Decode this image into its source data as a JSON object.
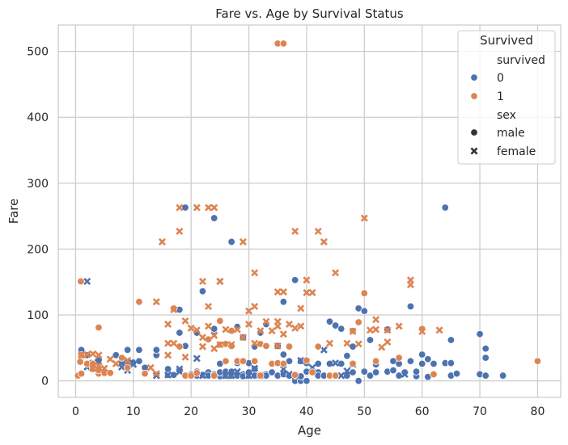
{
  "chart_data": {
    "type": "scatter",
    "title": "Fare vs. Age by Survival Status",
    "xlabel": "Age",
    "ylabel": "Fare",
    "xlim": [
      -3,
      84
    ],
    "ylim": [
      -25,
      540
    ],
    "xticks": [
      "0",
      "10",
      "20",
      "30",
      "40",
      "50",
      "60",
      "70",
      "80"
    ],
    "yticks": [
      "0",
      "100",
      "200",
      "300",
      "400",
      "500"
    ],
    "grid": true,
    "legend": {
      "title": "Survived",
      "placement": "top-right",
      "hue_label": "survived",
      "hue_entries": [
        "0",
        "1"
      ],
      "style_label": "sex",
      "style_entries": [
        "male",
        "female"
      ]
    },
    "colors": {
      "0": "#4c72b0",
      "1": "#dd8452"
    },
    "markers": {
      "male": "circle",
      "female": "x"
    },
    "series": [
      {
        "survived": "0",
        "sex": "male",
        "points": [
          [
            1,
            47
          ],
          [
            2,
            39
          ],
          [
            4,
            29
          ],
          [
            4,
            31
          ],
          [
            7,
            39
          ],
          [
            8,
            29
          ],
          [
            9,
            47
          ],
          [
            10,
            28
          ],
          [
            11,
            47
          ],
          [
            11,
            30
          ],
          [
            12,
            20
          ],
          [
            14,
            39
          ],
          [
            14,
            47
          ],
          [
            16,
            9
          ],
          [
            16,
            18
          ],
          [
            17,
            9
          ],
          [
            17,
            109
          ],
          [
            18,
            73
          ],
          [
            18,
            108
          ],
          [
            19,
            263
          ],
          [
            19,
            53
          ],
          [
            19,
            7
          ],
          [
            20,
            7
          ],
          [
            20,
            10
          ],
          [
            20,
            10
          ],
          [
            21,
            73
          ],
          [
            21,
            14
          ],
          [
            21,
            8
          ],
          [
            22,
            136
          ],
          [
            22,
            8
          ],
          [
            22,
            10
          ],
          [
            22,
            9
          ],
          [
            23,
            13
          ],
          [
            23,
            8
          ],
          [
            24,
            247
          ],
          [
            24,
            73
          ],
          [
            24,
            8
          ],
          [
            24,
            10
          ],
          [
            24,
            79
          ],
          [
            25,
            8
          ],
          [
            25,
            7
          ],
          [
            25,
            26
          ],
          [
            25,
            13
          ],
          [
            26,
            8
          ],
          [
            26,
            14
          ],
          [
            26,
            30
          ],
          [
            27,
            211
          ],
          [
            27,
            52
          ],
          [
            27,
            8
          ],
          [
            27,
            14
          ],
          [
            28,
            82
          ],
          [
            28,
            10
          ],
          [
            28,
            27
          ],
          [
            28,
            8
          ],
          [
            29,
            66
          ],
          [
            29,
            10
          ],
          [
            29,
            7
          ],
          [
            29,
            30
          ],
          [
            30,
            8
          ],
          [
            30,
            13
          ],
          [
            30,
            27
          ],
          [
            31,
            52
          ],
          [
            31,
            18
          ],
          [
            31,
            8
          ],
          [
            32,
            73
          ],
          [
            32,
            56
          ],
          [
            32,
            8
          ],
          [
            33,
            86
          ],
          [
            33,
            10
          ],
          [
            33,
            8
          ],
          [
            34,
            26
          ],
          [
            34,
            13
          ],
          [
            35,
            8
          ],
          [
            35,
            26
          ],
          [
            35,
            53
          ],
          [
            36,
            120
          ],
          [
            36,
            10
          ],
          [
            36,
            40
          ],
          [
            37,
            30
          ],
          [
            37,
            8
          ],
          [
            37,
            53
          ],
          [
            38,
            153
          ],
          [
            38,
            0
          ],
          [
            38,
            8
          ],
          [
            39,
            0
          ],
          [
            39,
            30
          ],
          [
            39,
            7
          ],
          [
            40,
            27
          ],
          [
            40,
            14
          ],
          [
            40,
            0
          ],
          [
            41,
            13
          ],
          [
            42,
            26
          ],
          [
            42,
            13
          ],
          [
            42,
            8
          ],
          [
            43,
            8
          ],
          [
            44,
            26
          ],
          [
            44,
            90
          ],
          [
            45,
            84
          ],
          [
            45,
            7
          ],
          [
            46,
            79
          ],
          [
            46,
            26
          ],
          [
            47,
            38
          ],
          [
            47,
            8
          ],
          [
            48,
            52
          ],
          [
            48,
            13
          ],
          [
            49,
            110
          ],
          [
            49,
            0
          ],
          [
            50,
            106
          ],
          [
            50,
            14
          ],
          [
            51,
            62
          ],
          [
            51,
            8
          ],
          [
            52,
            13
          ],
          [
            52,
            25
          ],
          [
            54,
            78
          ],
          [
            54,
            14
          ],
          [
            55,
            30
          ],
          [
            55,
            16
          ],
          [
            56,
            26
          ],
          [
            56,
            8
          ],
          [
            57,
            13
          ],
          [
            58,
            113
          ],
          [
            58,
            30
          ],
          [
            59,
            7
          ],
          [
            59,
            14
          ],
          [
            60,
            40
          ],
          [
            60,
            26
          ],
          [
            61,
            33
          ],
          [
            61,
            6
          ],
          [
            62,
            26
          ],
          [
            62,
            10
          ],
          [
            64,
            263
          ],
          [
            64,
            27
          ],
          [
            65,
            62
          ],
          [
            65,
            8
          ],
          [
            65,
            27
          ],
          [
            66,
            11
          ],
          [
            70,
            71
          ],
          [
            70,
            10
          ],
          [
            71,
            49
          ],
          [
            71,
            35
          ],
          [
            71,
            8
          ],
          [
            74,
            8
          ]
        ]
      },
      {
        "survived": "0",
        "sex": "female",
        "points": [
          [
            2,
            151
          ],
          [
            2,
            21
          ],
          [
            3,
            27
          ],
          [
            4,
            29
          ],
          [
            8,
            21
          ],
          [
            9,
            16
          ],
          [
            9,
            28
          ],
          [
            10,
            25
          ],
          [
            14,
            8
          ],
          [
            16,
            9
          ],
          [
            18,
            18
          ],
          [
            18,
            14
          ],
          [
            21,
            34
          ],
          [
            22,
            8
          ],
          [
            25,
            151
          ],
          [
            26,
            8
          ],
          [
            27,
            8
          ],
          [
            28,
            14
          ],
          [
            30,
            8
          ],
          [
            31,
            19
          ],
          [
            32,
            8
          ],
          [
            36,
            18
          ],
          [
            37,
            10
          ],
          [
            38,
            8
          ],
          [
            39,
            31
          ],
          [
            41,
            20
          ],
          [
            43,
            47
          ],
          [
            45,
            27
          ],
          [
            46,
            8
          ],
          [
            47,
            15
          ],
          [
            48,
            25
          ],
          [
            57,
            10
          ]
        ]
      },
      {
        "survived": "1",
        "sex": "male",
        "points": [
          [
            0.4,
            8
          ],
          [
            0.8,
            29
          ],
          [
            0.9,
            151
          ],
          [
            1,
            39
          ],
          [
            1,
            11
          ],
          [
            2,
            26
          ],
          [
            3,
            18
          ],
          [
            3,
            26
          ],
          [
            4,
            81
          ],
          [
            4,
            11
          ],
          [
            4,
            16
          ],
          [
            5,
            12
          ],
          [
            6,
            12
          ],
          [
            8,
            35
          ],
          [
            9,
            20
          ],
          [
            11,
            120
          ],
          [
            12,
            11
          ],
          [
            17,
            110
          ],
          [
            18,
            52
          ],
          [
            19,
            8
          ],
          [
            20,
            8
          ],
          [
            21,
            12
          ],
          [
            23,
            63
          ],
          [
            24,
            8
          ],
          [
            25,
            91
          ],
          [
            25,
            55
          ],
          [
            26,
            56
          ],
          [
            26,
            30
          ],
          [
            27,
            76
          ],
          [
            27,
            53
          ],
          [
            28,
            30
          ],
          [
            29,
            30
          ],
          [
            31,
            30
          ],
          [
            32,
            56
          ],
          [
            32,
            8
          ],
          [
            33,
            53
          ],
          [
            34,
            26
          ],
          [
            35,
            512
          ],
          [
            35,
            27
          ],
          [
            36,
            512
          ],
          [
            36,
            26
          ],
          [
            37,
            52
          ],
          [
            38,
            9
          ],
          [
            40,
            31
          ],
          [
            41,
            13
          ],
          [
            42,
            52
          ],
          [
            44,
            8
          ],
          [
            45,
            8
          ],
          [
            48,
            76
          ],
          [
            48,
            26
          ],
          [
            49,
            89
          ],
          [
            50,
            133
          ],
          [
            52,
            30
          ],
          [
            56,
            35
          ],
          [
            60,
            79
          ],
          [
            62,
            10
          ],
          [
            80,
            30
          ]
        ]
      },
      {
        "survived": "1",
        "sex": "female",
        "points": [
          [
            1,
            39
          ],
          [
            2,
            40
          ],
          [
            3,
            41
          ],
          [
            3,
            19
          ],
          [
            4,
            39
          ],
          [
            4,
            23
          ],
          [
            5,
            19
          ],
          [
            6,
            33
          ],
          [
            7,
            26
          ],
          [
            9,
            31
          ],
          [
            13,
            20
          ],
          [
            14,
            120
          ],
          [
            14,
            11
          ],
          [
            15,
            211
          ],
          [
            16,
            86
          ],
          [
            16,
            57
          ],
          [
            16,
            39
          ],
          [
            17,
            108
          ],
          [
            17,
            57
          ],
          [
            18,
            263
          ],
          [
            18,
            227
          ],
          [
            19,
            91
          ],
          [
            19,
            36
          ],
          [
            20,
            80
          ],
          [
            21,
            263
          ],
          [
            21,
            77
          ],
          [
            22,
            151
          ],
          [
            22,
            66
          ],
          [
            22,
            52
          ],
          [
            23,
            263
          ],
          [
            23,
            113
          ],
          [
            23,
            83
          ],
          [
            24,
            263
          ],
          [
            24,
            69
          ],
          [
            24,
            49
          ],
          [
            25,
            151
          ],
          [
            25,
            55
          ],
          [
            26,
            78
          ],
          [
            27,
            55
          ],
          [
            28,
            78
          ],
          [
            29,
            211
          ],
          [
            29,
            66
          ],
          [
            30,
            106
          ],
          [
            30,
            86
          ],
          [
            31,
            164
          ],
          [
            31,
            113
          ],
          [
            31,
            57
          ],
          [
            32,
            76
          ],
          [
            33,
            90
          ],
          [
            34,
            76
          ],
          [
            35,
            135
          ],
          [
            35,
            90
          ],
          [
            35,
            83
          ],
          [
            35,
            53
          ],
          [
            36,
            135
          ],
          [
            36,
            71
          ],
          [
            37,
            86
          ],
          [
            38,
            227
          ],
          [
            38,
            80
          ],
          [
            39,
            110
          ],
          [
            39,
            83
          ],
          [
            40,
            153
          ],
          [
            40,
            134
          ],
          [
            41,
            134
          ],
          [
            42,
            227
          ],
          [
            43,
            211
          ],
          [
            44,
            57
          ],
          [
            45,
            164
          ],
          [
            47,
            57
          ],
          [
            48,
            75
          ],
          [
            49,
            56
          ],
          [
            50,
            247
          ],
          [
            51,
            77
          ],
          [
            52,
            93
          ],
          [
            52,
            78
          ],
          [
            53,
            51
          ],
          [
            54,
            59
          ],
          [
            54,
            77
          ],
          [
            56,
            83
          ],
          [
            58,
            153
          ],
          [
            58,
            146
          ],
          [
            60,
            75
          ],
          [
            63,
            77
          ]
        ]
      }
    ]
  }
}
